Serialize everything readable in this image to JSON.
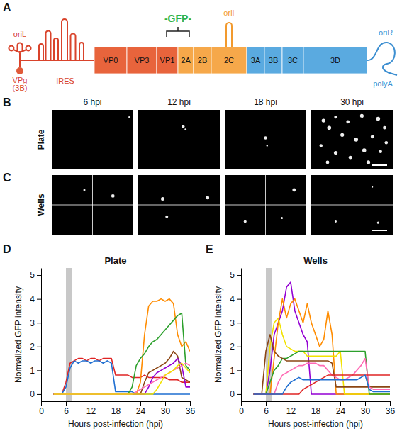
{
  "diagram": {
    "panel": "A",
    "five_prime": {
      "oriL": "oriL",
      "vpg": "VPg",
      "vpg_gene": "(3B)",
      "ires": "IRES"
    },
    "regions": [
      {
        "color": "#e8643c",
        "segments": [
          "VP0",
          "VP3",
          "VP1"
        ]
      },
      {
        "color": "#f6a84a",
        "segments": [
          "2A",
          "2B",
          "2C"
        ]
      },
      {
        "color": "#5aaae0",
        "segments": [
          "3A",
          "3B",
          "3C",
          "3D"
        ]
      }
    ],
    "insert": {
      "label": "-GFP-",
      "color": "#2db34a"
    },
    "oriI": "oriI",
    "three_prime": {
      "oriR": "oriR",
      "polyA": "polyA"
    }
  },
  "micrographs": {
    "columns": [
      "6 hpi",
      "12 hpi",
      "18 hpi",
      "30 hpi"
    ],
    "rows": [
      {
        "panel": "B",
        "label": "Plate"
      },
      {
        "panel": "C",
        "label": "Wells"
      }
    ]
  },
  "chart_data": [
    {
      "panel": "D",
      "type": "line",
      "title": "Plate",
      "x_label": "Hours post-infection (hpi)",
      "y_label": "Normalized GFP intensity",
      "x": [
        3,
        4,
        5,
        6,
        7,
        8,
        9,
        10,
        11,
        12,
        13,
        14,
        15,
        16,
        17,
        18,
        19,
        20,
        21,
        22,
        23,
        24,
        25,
        26,
        27,
        28,
        29,
        30,
        31,
        32,
        33,
        34,
        35,
        36
      ],
      "xlim": [
        0,
        36
      ],
      "xticks": [
        0,
        6,
        12,
        18,
        24,
        30,
        36
      ],
      "ylim": [
        -0.3,
        5.3
      ],
      "yticks": [
        0,
        1,
        2,
        3,
        4,
        5
      ],
      "shaded_x": [
        6,
        7.5
      ],
      "series": [
        {
          "color": "#e02424",
          "values": [
            0,
            0,
            0,
            0.5,
            1.3,
            1.4,
            1.5,
            1.5,
            1.4,
            1.5,
            1.5,
            1.4,
            1.5,
            1.5,
            1.5,
            0.8,
            0.8,
            0.8,
            0.8,
            0.7,
            0.7,
            0.7,
            0.8,
            0.7,
            0.7,
            0.7,
            0.7,
            0.7,
            0.6,
            0.6,
            0.6,
            0.5,
            0.5,
            0.5
          ]
        },
        {
          "color": "#1f6fd1",
          "values": [
            0,
            0,
            0,
            0.3,
            1.1,
            1.4,
            1.3,
            1.4,
            1.4,
            1.3,
            1.4,
            1.4,
            1.3,
            1.4,
            1.3,
            0.1,
            0.1,
            0.1,
            0.1,
            0.1,
            0,
            0,
            0,
            0,
            0,
            0,
            0,
            0,
            0,
            0,
            0,
            0,
            0,
            0
          ]
        },
        {
          "color": "#ff8c00",
          "values": [
            0,
            0,
            0,
            0,
            0,
            0,
            0,
            0,
            0,
            0,
            0,
            0,
            0,
            0,
            0,
            0,
            0,
            0,
            0,
            0,
            0,
            0.5,
            2.5,
            3.7,
            3.9,
            3.9,
            4,
            3.9,
            4,
            3.8,
            2.5,
            2,
            2.2,
            1.8
          ]
        },
        {
          "color": "#2ca02c",
          "values": [
            0,
            0,
            0,
            0,
            0,
            0,
            0,
            0,
            0,
            0,
            0,
            0,
            0,
            0,
            0,
            0,
            0,
            0,
            0,
            0.3,
            1.2,
            1.5,
            1.7,
            2,
            2.2,
            2.3,
            2.5,
            2.7,
            2.9,
            3.1,
            3.3,
            3.4,
            1.2,
            1
          ]
        },
        {
          "color": "#8b4513",
          "values": [
            0,
            0,
            0,
            0,
            0,
            0,
            0,
            0,
            0,
            0,
            0,
            0,
            0,
            0,
            0,
            0,
            0,
            0,
            0,
            0,
            0,
            0,
            0.5,
            0.9,
            1,
            1.1,
            1.2,
            1.3,
            1.5,
            1.8,
            1.6,
            0.7,
            0.6,
            0.5
          ]
        },
        {
          "color": "#9400d3",
          "values": [
            0,
            0,
            0,
            0,
            0,
            0,
            0,
            0,
            0,
            0,
            0,
            0,
            0,
            0,
            0,
            0,
            0,
            0,
            0,
            0,
            0,
            0,
            0,
            0.3,
            0.7,
            0.9,
            1,
            1.1,
            1.2,
            1.3,
            1.5,
            1.2,
            0.3,
            0.3
          ]
        },
        {
          "color": "#ff69b4",
          "values": [
            0,
            0,
            0,
            0,
            0,
            0,
            0,
            0,
            0,
            0,
            0,
            0,
            0,
            0,
            0,
            0,
            0,
            0,
            0,
            0,
            0.1,
            0.2,
            0.3,
            0.4,
            0.5,
            0.6,
            0.7,
            0.8,
            0.9,
            1,
            1.1,
            1.2,
            1.3,
            1.2
          ]
        },
        {
          "color": "#f2e200",
          "values": [
            0,
            0,
            0,
            0,
            0,
            0,
            0,
            0,
            0,
            0,
            0,
            0,
            0,
            0,
            0,
            0,
            0,
            0,
            0,
            0,
            0,
            0,
            0,
            0,
            0,
            0.2,
            0.5,
            0.8,
            0.9,
            1,
            1.2,
            1.3,
            1.1,
            0.9
          ]
        }
      ]
    },
    {
      "panel": "E",
      "type": "line",
      "title": "Wells",
      "x_label": "Hours post-infection (hpi)",
      "y_label": "Normalized GFP intensity",
      "x": [
        3,
        4,
        5,
        6,
        7,
        8,
        9,
        10,
        11,
        12,
        13,
        14,
        15,
        16,
        17,
        18,
        19,
        20,
        21,
        22,
        23,
        24,
        25,
        26,
        27,
        28,
        29,
        30,
        31,
        32,
        33,
        34,
        35,
        36
      ],
      "xlim": [
        0,
        36
      ],
      "xticks": [
        0,
        6,
        12,
        18,
        24,
        30,
        36
      ],
      "ylim": [
        -0.3,
        5.3
      ],
      "yticks": [
        0,
        1,
        2,
        3,
        4,
        5
      ],
      "shaded_x": [
        6,
        7.5
      ],
      "series": [
        {
          "color": "#9400d3",
          "values": [
            0,
            0,
            0,
            0,
            1,
            2.5,
            3,
            3.5,
            4.5,
            4.7,
            3.5,
            3,
            2.5,
            2.2,
            0,
            0,
            0,
            0,
            0,
            0,
            0,
            0,
            0,
            0,
            0,
            0,
            0,
            0,
            0,
            0,
            0,
            0,
            0,
            0
          ]
        },
        {
          "color": "#ff8c00",
          "values": [
            0,
            0,
            0,
            0,
            0,
            1.5,
            3,
            4,
            3.2,
            3.8,
            4,
            3.5,
            3,
            3.8,
            3,
            2.5,
            2,
            2.3,
            3.5,
            2.5,
            0,
            0,
            0,
            0,
            0,
            0,
            0,
            0,
            0,
            0,
            0,
            0,
            0,
            0
          ]
        },
        {
          "color": "#f2e200",
          "values": [
            0,
            0,
            0,
            0,
            2,
            3,
            3.2,
            2.5,
            2,
            1.9,
            1.8,
            1.8,
            1.8,
            1.6,
            1.6,
            1.6,
            1.6,
            1.6,
            1.6,
            1.6,
            1.6,
            1.8,
            0,
            0,
            0,
            0,
            0,
            0,
            0,
            0,
            0,
            0,
            0,
            0
          ]
        },
        {
          "color": "#2ca02c",
          "values": [
            0,
            0,
            0,
            0,
            0.5,
            1,
            1.2,
            1.5,
            1.5,
            1.6,
            1.7,
            1.8,
            1.8,
            1.8,
            1.8,
            1.8,
            1.8,
            1.8,
            1.8,
            1.8,
            1.8,
            1.8,
            1.8,
            1.8,
            1.8,
            1.8,
            1.8,
            1.8,
            0,
            0,
            0,
            0,
            0,
            0
          ]
        },
        {
          "color": "#8b4513",
          "values": [
            0,
            0,
            0,
            1.8,
            2.5,
            1.8,
            1.6,
            1.5,
            1.4,
            1.4,
            1.4,
            1.4,
            1.4,
            1.4,
            1.4,
            1.4,
            1.4,
            1.4,
            1.4,
            1.3,
            0.3,
            0.3,
            0.3,
            0.3,
            0.3,
            0.3,
            0.3,
            0.3,
            0.3,
            0.3,
            0.3,
            0.3,
            0.3,
            0.3
          ]
        },
        {
          "color": "#ff69b4",
          "values": [
            0,
            0,
            0,
            0,
            0,
            0,
            0.5,
            0.8,
            0.9,
            1,
            1.1,
            1.2,
            1.2,
            1.3,
            1.3,
            1.3,
            1.2,
            1.2,
            1,
            0.8,
            0.7,
            0.6,
            0.6,
            0.7,
            0.8,
            1,
            1.2,
            1.5,
            0.3,
            0.2,
            0.2,
            0.2,
            0.2,
            0.2
          ]
        },
        {
          "color": "#e02424",
          "values": [
            0,
            0,
            0,
            0,
            0,
            0,
            0,
            0,
            0,
            0,
            0,
            0,
            0.2,
            0.3,
            0.4,
            0.5,
            0.6,
            0.7,
            0.8,
            0.8,
            0.8,
            0.8,
            0.8,
            0.8,
            0.8,
            0.8,
            0.8,
            0.8,
            0.8,
            0.8,
            0.8,
            0.8,
            0.8,
            0.8
          ]
        },
        {
          "color": "#1f6fd1",
          "values": [
            0,
            0,
            0,
            0,
            0,
            0,
            0,
            0,
            0.3,
            0.5,
            0.6,
            0.7,
            0.6,
            0.6,
            0.6,
            0.6,
            0.6,
            0.6,
            0.6,
            0.6,
            0.6,
            0.6,
            0.6,
            0.6,
            0.6,
            0.6,
            0.7,
            0.8,
            0.2,
            0.1,
            0.1,
            0.1,
            0.1,
            0.1
          ]
        }
      ]
    }
  ]
}
